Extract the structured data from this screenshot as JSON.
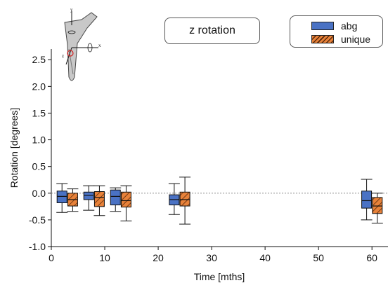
{
  "chart_data": {
    "type": "box",
    "panel_label": "z rotation",
    "xlabel": "Time [mths]",
    "ylabel": "Rotation [degrees]",
    "xlim": [
      0,
      63
    ],
    "ylim": [
      -1.0,
      2.7
    ],
    "xticks": [
      "0",
      "10",
      "20",
      "30",
      "40",
      "50",
      "60"
    ],
    "xtick_values": [
      0,
      10,
      20,
      30,
      40,
      50,
      60
    ],
    "yticks": [
      "-1.0",
      "-0.5",
      "0.0",
      "0.5",
      "1.0",
      "1.5",
      "2.0",
      "2.5"
    ],
    "ytick_values": [
      -1.0,
      -0.5,
      0.0,
      0.5,
      1.0,
      1.5,
      2.0,
      2.5
    ],
    "reference_line": 0.0,
    "series": [
      {
        "name": "abg",
        "color": "#4a72c4",
        "pattern": "solid",
        "boxes": [
          {
            "x": 2,
            "whisker_low": -0.36,
            "q1": -0.18,
            "median": -0.06,
            "q3": 0.04,
            "whisker_high": 0.18
          },
          {
            "x": 7,
            "whisker_low": -0.32,
            "q1": -0.12,
            "median": -0.04,
            "q3": 0.02,
            "whisker_high": 0.14
          },
          {
            "x": 12,
            "whisker_low": -0.34,
            "q1": -0.22,
            "median": -0.06,
            "q3": 0.06,
            "whisker_high": 0.1
          },
          {
            "x": 23,
            "whisker_low": -0.4,
            "q1": -0.22,
            "median": -0.12,
            "q3": -0.03,
            "whisker_high": 0.18
          },
          {
            "x": 59,
            "whisker_low": -0.5,
            "q1": -0.28,
            "median": -0.14,
            "q3": 0.04,
            "whisker_high": 0.26
          }
        ]
      },
      {
        "name": "unique",
        "color": "#e8823a",
        "pattern": "hatched",
        "boxes": [
          {
            "x": 4,
            "whisker_low": -0.34,
            "q1": -0.24,
            "median": -0.12,
            "q3": 0.0,
            "whisker_high": 0.08
          },
          {
            "x": 9,
            "whisker_low": -0.42,
            "q1": -0.25,
            "median": -0.08,
            "q3": 0.03,
            "whisker_high": 0.14
          },
          {
            "x": 14,
            "whisker_low": -0.52,
            "q1": -0.26,
            "median": -0.14,
            "q3": 0.02,
            "whisker_high": 0.14
          },
          {
            "x": 25,
            "whisker_low": -0.58,
            "q1": -0.24,
            "median": -0.12,
            "q3": 0.02,
            "whisker_high": 0.3
          },
          {
            "x": 61,
            "whisker_low": -0.56,
            "q1": -0.38,
            "median": -0.24,
            "q3": -0.08,
            "whisker_high": 0.0
          }
        ]
      }
    ],
    "legend": {
      "position": "top-right",
      "entries": [
        "abg",
        "unique"
      ]
    },
    "inset_icon": "hip-implant-axes-icon"
  }
}
